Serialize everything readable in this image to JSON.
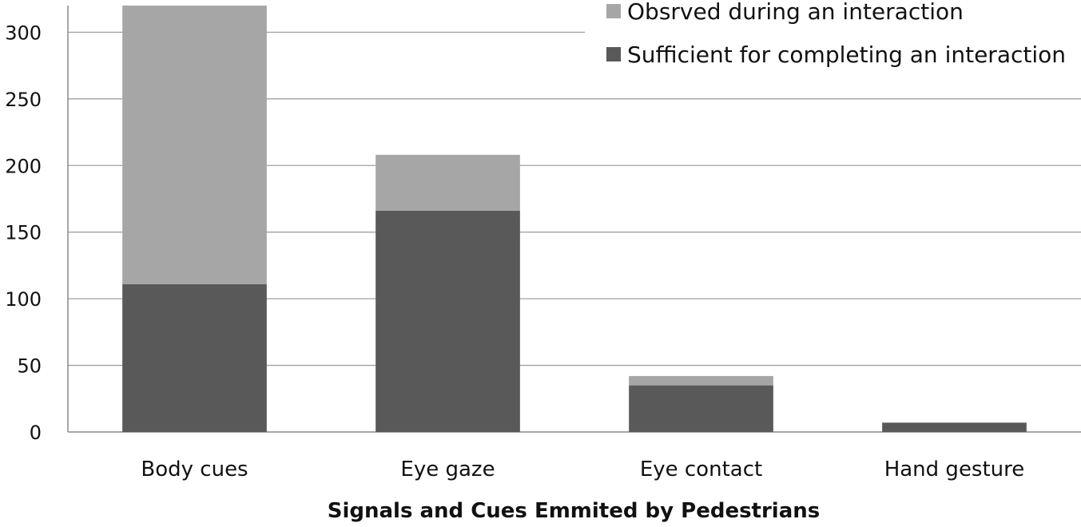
{
  "chart_data": {
    "type": "bar",
    "stacked": true,
    "title": "",
    "xlabel": "Signals and Cues Emmited by Pedestrians",
    "ylabel": "",
    "ylim": [
      0,
      320
    ],
    "yticks": [
      0,
      50,
      100,
      150,
      200,
      250,
      300
    ],
    "grid": true,
    "legend_position": "top-right",
    "categories": [
      "Body cues",
      "Eye gaze",
      "Eye contact",
      "Hand gesture"
    ],
    "series": [
      {
        "name": "Sufficient for completing an interaction",
        "color": "#595959",
        "values": [
          111,
          166,
          35,
          7
        ]
      },
      {
        "name": "Obsrved during an interaction",
        "color": "#a6a6a6",
        "values": [
          209,
          42,
          7,
          0
        ]
      }
    ]
  }
}
